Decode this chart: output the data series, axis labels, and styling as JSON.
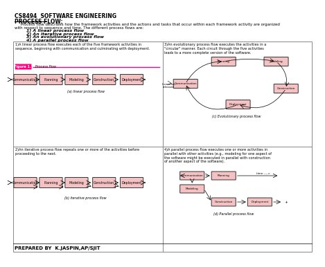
{
  "title": "CS8494  SOFTWARE ENGINEERING",
  "section_title": "PROCESS FLOW:",
  "body_text_1": "     Process flow describes how the framework activities and the actions and tasks that occur within each framework activity are organized",
  "body_text_2": "with respect to sequence and time. The different process flows are:",
  "list_items": [
    "        1) A linear process flow",
    "        2) An iterative process flow",
    "        3) An evolutionary process flow",
    "        4) A parallel process flow"
  ],
  "footer": "PREPARED BY  K.JASPIN,AP/SJIT",
  "box_labels": [
    "Communication",
    "Planning",
    "Modeling",
    "Construction",
    "Deployment"
  ],
  "box_color": "#f4c2c2",
  "box_edge_color": "#333333",
  "pink_color": "#ff0080",
  "section1_title": "1)A linear process flow executes each of the five framework activities in\nsequence, beginning with communication and culminating with deployment.",
  "section2_title": "2)An iterative process flow repeats one or more of the activities before\nproceeding to the next.",
  "section3_title": "3)An evolutionary process flow executes the activities in a\n\"circular\" manner. Each circuit through the five activities\nleads to a more complete version of the software.",
  "section4_title": "4)A parallel process flow executes one or more activities in\nparallel with other activities (e.g., modeling for one aspect of\nthe software might be executed in parallel with construction\nof another aspect of the software).",
  "fig_label": "Figure 1.1",
  "fig_sublabel": "  Process flow",
  "sub_captions": [
    "(a) linear process flow",
    "(b) iterative process flow",
    "(c) Evolutionary process flow",
    "(d) Parallel process flow"
  ],
  "bg_color": "#ffffff",
  "grid_color": "#888888",
  "increment_text": "Increment\nreleased"
}
